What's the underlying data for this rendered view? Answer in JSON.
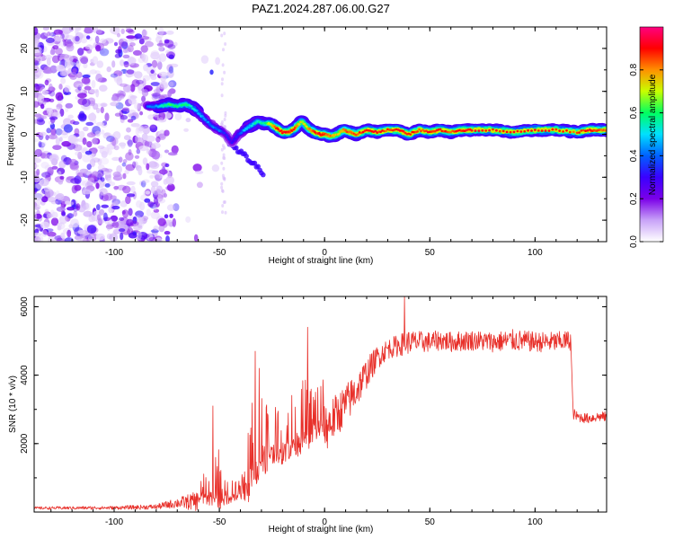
{
  "title": "PAZ1.2024.287.06.00.G27",
  "chart_data": [
    {
      "type": "heatmap",
      "name": "spectrogram",
      "xlabel": "Height of straight line (km)",
      "ylabel": "Frequency (Hz)",
      "xlim": [
        -138,
        134
      ],
      "ylim": [
        -25,
        25
      ],
      "xticks": [
        -100,
        -50,
        0,
        50,
        100
      ],
      "yticks": [
        -20,
        -10,
        0,
        10,
        20
      ],
      "colorbar": {
        "label": "Normalized spectral amplitude",
        "range": [
          0,
          1
        ],
        "ticks": [
          "0.0",
          "0.2",
          "0.4",
          "0.6",
          "0.8"
        ],
        "colors": [
          "#ffffff",
          "#c8a2f8",
          "#7b00e8",
          "#3a00ff",
          "#0060ff",
          "#00e0ff",
          "#00ff60",
          "#c8ff00",
          "#ff9000",
          "#ff0000",
          "#ff0080"
        ]
      },
      "ridge": {
        "x": [
          -84,
          -78,
          -74,
          -70,
          -66,
          -62,
          -58,
          -54,
          -50,
          -47,
          -44,
          -41,
          -38,
          -35,
          -32,
          -29,
          -26,
          -23,
          -20,
          -17,
          -14,
          -11,
          -8,
          -5,
          -2,
          0,
          3,
          6,
          9,
          12,
          15,
          20,
          25,
          30,
          35,
          40,
          45,
          50,
          55,
          60,
          65,
          70,
          80,
          90,
          100,
          110,
          120,
          126,
          130,
          134
        ],
        "y": [
          6.5,
          6.5,
          7,
          6.5,
          7,
          6,
          4,
          2,
          1,
          0,
          -2,
          0,
          1,
          2,
          3,
          2.5,
          2.5,
          1.5,
          0.5,
          0.5,
          1.5,
          3,
          1.5,
          0.5,
          0,
          0,
          -0.5,
          0,
          1,
          0.5,
          0,
          1,
          0.5,
          1,
          1,
          0,
          1,
          0.5,
          1,
          0.5,
          1,
          1,
          1,
          0.5,
          1,
          1,
          0.5,
          1,
          1,
          1
        ],
        "peak_amplitude": [
          0.4,
          0.5,
          0.6,
          0.55,
          0.6,
          0.5,
          0.45,
          0.4,
          0.4,
          0.3,
          0.3,
          0.35,
          0.45,
          0.5,
          0.55,
          0.55,
          0.7,
          0.85,
          0.9,
          0.9,
          0.85,
          0.7,
          0.75,
          0.85,
          0.9,
          0.85,
          0.8,
          0.75,
          0.8,
          0.85,
          0.85,
          0.9,
          0.9,
          0.85,
          0.9,
          0.9,
          0.85,
          0.9,
          0.9,
          0.85,
          0.9,
          0.9,
          0.9,
          0.9,
          0.9,
          0.9,
          0.85,
          0.9,
          0.85,
          0.85
        ]
      },
      "noise": {
        "region": "x from -138 to -75, scattered purple speckles over the full frequency range",
        "amplitude_range": [
          0.05,
          0.3
        ]
      }
    },
    {
      "type": "line",
      "name": "snr",
      "xlabel": "Height of straight line (km)",
      "ylabel": "SNR (10 * v/v)",
      "xlim": [
        -138,
        134
      ],
      "ylim": [
        0,
        6300
      ],
      "xticks": [
        -100,
        -50,
        0,
        50,
        100
      ],
      "yticks": [
        2000,
        4000,
        6000
      ],
      "color": "#e8302a",
      "envelope": {
        "x": [
          -138,
          -100,
          -80,
          -70,
          -60,
          -55,
          -50,
          -48,
          -45,
          -40,
          -37,
          -35,
          -33,
          -31,
          -29,
          -27,
          -25,
          -20,
          -15,
          -10,
          -5,
          0,
          5,
          10,
          15,
          20,
          25,
          30,
          35,
          40,
          45,
          50,
          55,
          60,
          70,
          80,
          90,
          100,
          110,
          117,
          118,
          120,
          125,
          130,
          134
        ],
        "base": [
          120,
          130,
          160,
          280,
          350,
          380,
          400,
          350,
          400,
          450,
          600,
          800,
          1200,
          1400,
          1500,
          1600,
          1700,
          1700,
          1900,
          2100,
          2300,
          2500,
          2850,
          3200,
          3600,
          4100,
          4550,
          4800,
          4900,
          5000,
          5000,
          5000,
          5050,
          5000,
          5050,
          5000,
          5050,
          5000,
          5000,
          5050,
          2900,
          2800,
          2750,
          2800,
          2800
        ],
        "spread": [
          80,
          100,
          150,
          300,
          600,
          900,
          1600,
          900,
          700,
          600,
          1800,
          2800,
          2900,
          2600,
          2200,
          1800,
          1300,
          1500,
          1700,
          1800,
          1700,
          1500,
          1300,
          1200,
          1100,
          900,
          700,
          600,
          650,
          700,
          650,
          600,
          600,
          600,
          600,
          600,
          650,
          600,
          600,
          600,
          350,
          300,
          300,
          300,
          300
        ]
      },
      "peaks": [
        {
          "x": -53,
          "y": 3100
        },
        {
          "x": -33,
          "y": 4700
        },
        {
          "x": -31,
          "y": 4200
        },
        {
          "x": -8,
          "y": 5400
        },
        {
          "x": 38,
          "y": 6300
        }
      ]
    }
  ]
}
